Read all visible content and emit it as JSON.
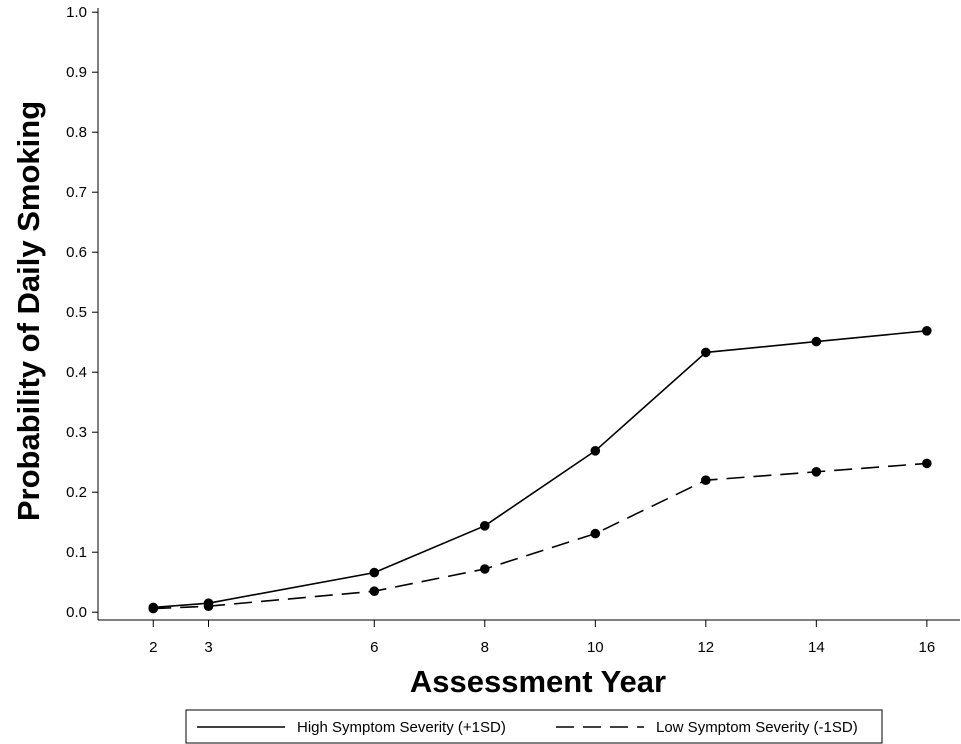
{
  "chart_data": {
    "type": "line",
    "title": "",
    "xlabel": "Assessment Year",
    "ylabel": "Probability of Daily Smoking",
    "x": [
      2,
      3,
      6,
      8,
      10,
      12,
      14,
      16
    ],
    "xticks": [
      2,
      3,
      6,
      8,
      10,
      12,
      14,
      16
    ],
    "xlim": [
      1,
      16.6
    ],
    "ylim": [
      -0.013,
      1.007
    ],
    "yticks": [
      0.0,
      0.1,
      0.2,
      0.3,
      0.4,
      0.5,
      0.6,
      0.7,
      0.8,
      0.9,
      1.0
    ],
    "ytick_labels": [
      "0.0",
      "0.1",
      "0.2",
      "0.3",
      "0.4",
      "0.5",
      "0.6",
      "0.7",
      "0.8",
      "0.9",
      "1.0"
    ],
    "grid": false,
    "legend_position": "bottom",
    "series": [
      {
        "name": "High Symptom Severity (+1SD)",
        "line_style": "solid",
        "color": "#000000",
        "values": [
          0.008,
          0.015,
          0.066,
          0.144,
          0.269,
          0.433,
          0.451,
          0.469
        ]
      },
      {
        "name": "Low Symptom Severity (-1SD)",
        "line_style": "dashed",
        "color": "#000000",
        "values": [
          0.006,
          0.01,
          0.035,
          0.072,
          0.131,
          0.22,
          0.234,
          0.248
        ]
      }
    ]
  }
}
